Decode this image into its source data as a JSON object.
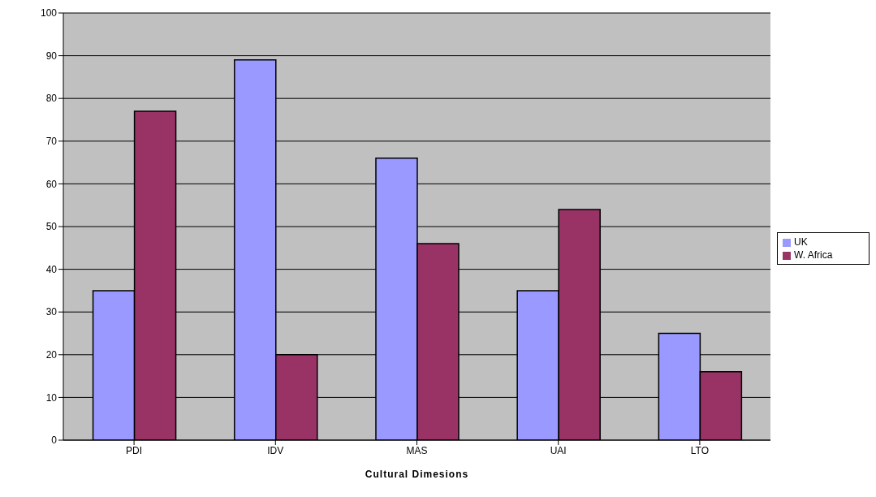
{
  "chart_data": {
    "type": "bar",
    "xlabel": "Cultural Dimesions",
    "categories": [
      "PDI",
      "IDV",
      "MAS",
      "UAI",
      "LTO"
    ],
    "series": [
      {
        "name": "UK",
        "color": "#9999ff",
        "values": [
          35,
          89,
          66,
          35,
          25
        ]
      },
      {
        "name": "W. Africa",
        "color": "#993366",
        "values": [
          77,
          20,
          46,
          54,
          16
        ]
      }
    ],
    "ylim": [
      0,
      100
    ],
    "yticks": [
      0,
      10,
      20,
      30,
      40,
      50,
      60,
      70,
      80,
      90,
      100
    ],
    "grid": "y",
    "legend": "right"
  }
}
